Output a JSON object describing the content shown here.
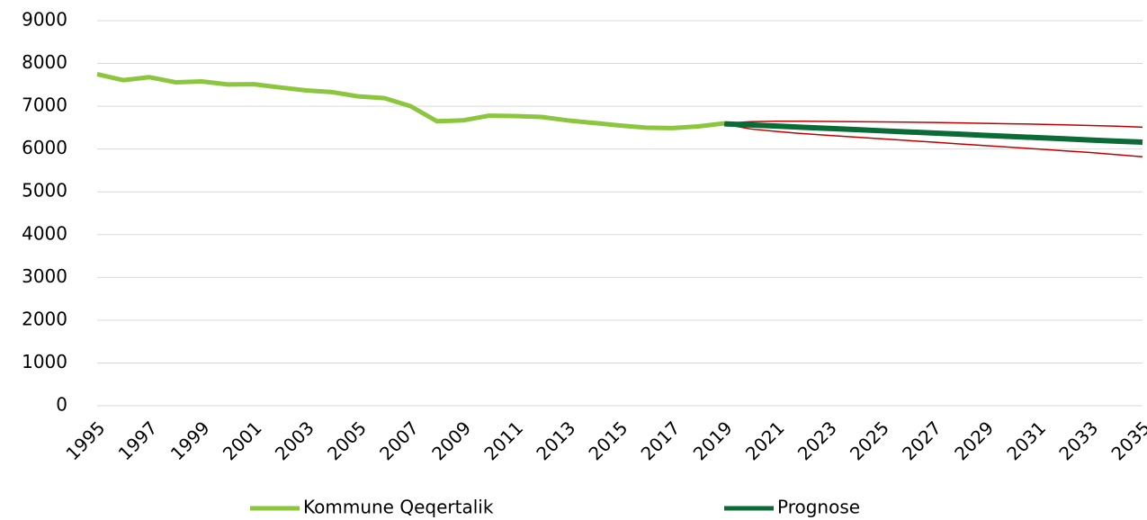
{
  "chart_data": {
    "type": "line",
    "xlim": [
      1995,
      2035
    ],
    "xticks": [
      1995,
      1997,
      1999,
      2001,
      2003,
      2005,
      2007,
      2009,
      2011,
      2013,
      2015,
      2017,
      2019,
      2021,
      2023,
      2025,
      2027,
      2029,
      2031,
      2033,
      2035
    ],
    "ylim": [
      0,
      9000
    ],
    "yticks": [
      0,
      1000,
      2000,
      3000,
      4000,
      5000,
      6000,
      7000,
      8000,
      9000
    ],
    "grid": true,
    "legend": "bottom",
    "series": [
      {
        "name": "Kommune Qeqertalik",
        "color": "#8cc63f",
        "width": 5,
        "x": [
          1995,
          1996,
          1997,
          1998,
          1999,
          2000,
          2001,
          2002,
          2003,
          2004,
          2005,
          2006,
          2007,
          2008,
          2009,
          2010,
          2011,
          2012,
          2013,
          2014,
          2015,
          2016,
          2017,
          2018,
          2019
        ],
        "values": [
          7750,
          7610,
          7680,
          7560,
          7580,
          7510,
          7515,
          7440,
          7370,
          7330,
          7230,
          7190,
          7000,
          6650,
          6670,
          6780,
          6770,
          6750,
          6670,
          6610,
          6550,
          6500,
          6490,
          6530,
          6600
        ]
      },
      {
        "color": "#c00000",
        "width": 1.5,
        "x": [
          2019,
          2020,
          2021,
          2022,
          2023,
          2024,
          2025,
          2026,
          2027,
          2028,
          2029,
          2030,
          2031,
          2032,
          2033,
          2034,
          2035
        ],
        "values": [
          6600,
          6640,
          6650,
          6650,
          6645,
          6640,
          6635,
          6630,
          6620,
          6610,
          6600,
          6590,
          6580,
          6565,
          6550,
          6535,
          6510
        ]
      },
      {
        "color": "#c00000",
        "width": 1.5,
        "x": [
          2019,
          2020,
          2021,
          2022,
          2023,
          2024,
          2025,
          2026,
          2027,
          2028,
          2029,
          2030,
          2031,
          2032,
          2033,
          2034,
          2035
        ],
        "values": [
          6580,
          6470,
          6410,
          6360,
          6320,
          6280,
          6240,
          6200,
          6160,
          6120,
          6080,
          6040,
          6000,
          5960,
          5920,
          5870,
          5820
        ]
      },
      {
        "name": "Prognose",
        "color": "#0b6b36",
        "width": 6,
        "x": [
          2019,
          2020,
          2021,
          2022,
          2023,
          2024,
          2025,
          2026,
          2027,
          2028,
          2029,
          2030,
          2031,
          2032,
          2033,
          2034,
          2035
        ],
        "values": [
          6590,
          6563,
          6536,
          6509,
          6482,
          6455,
          6428,
          6401,
          6374,
          6347,
          6320,
          6293,
          6266,
          6239,
          6212,
          6185,
          6160
        ]
      }
    ]
  }
}
